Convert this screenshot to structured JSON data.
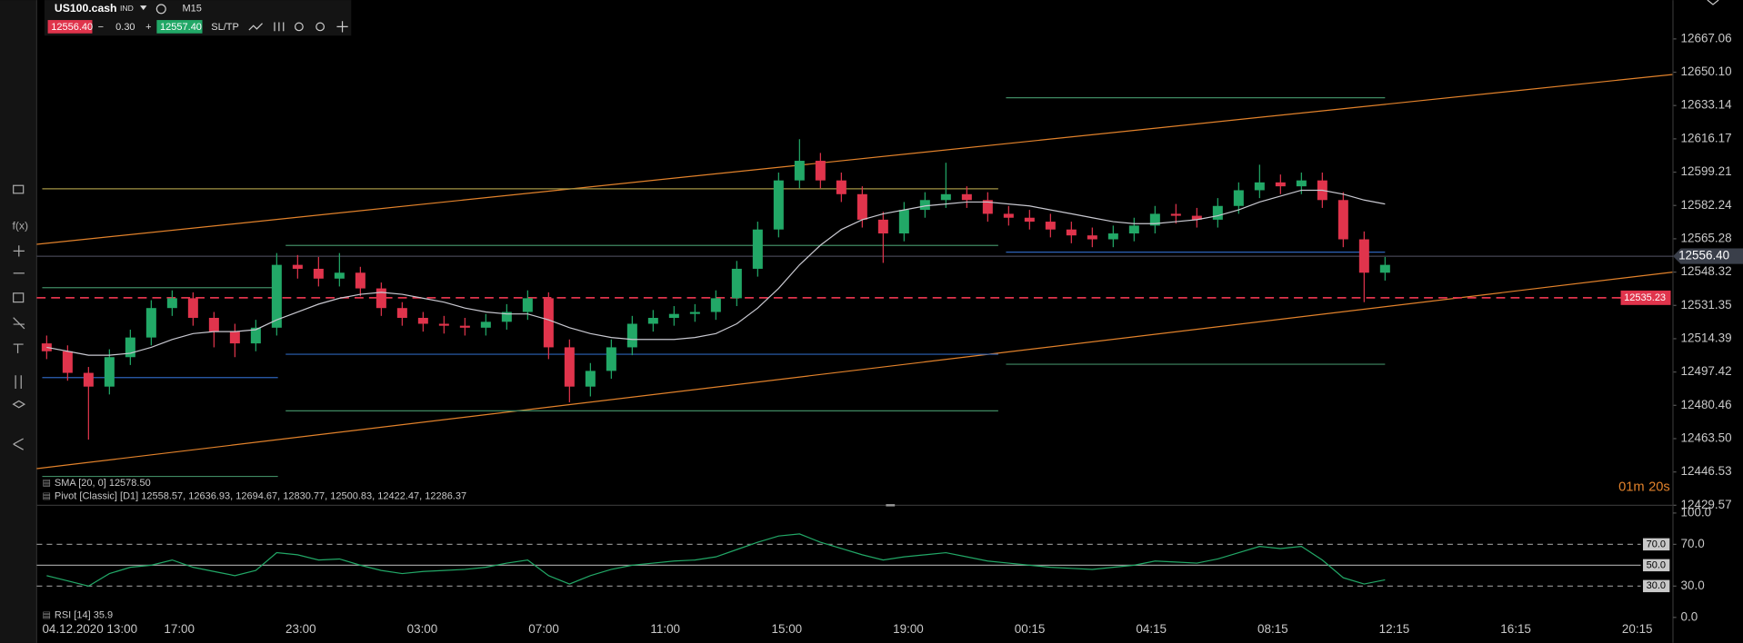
{
  "toolbar": {
    "symbol": "US100.cash",
    "class": "IND",
    "timeframe": "M15",
    "bid": "12556.40",
    "spread": "0.30",
    "ask": "12557.40",
    "sltp": "SL/TP"
  },
  "chart_data": {
    "type": "candlestick",
    "x_labels": [
      "04.12.2020 13:00",
      "17:00",
      "23:00",
      "03:00",
      "07:00",
      "11:00",
      "15:00",
      "19:00",
      "00:15",
      "04:15",
      "08:15",
      "12:15",
      "16:15",
      "20:15"
    ],
    "ohlc": [
      [
        12512,
        12516,
        12504,
        12508
      ],
      [
        12508,
        12511,
        12493,
        12497
      ],
      [
        12497,
        12500,
        12463,
        12490
      ],
      [
        12490,
        12509,
        12486,
        12505
      ],
      [
        12505,
        12519,
        12501,
        12515
      ],
      [
        12515,
        12534,
        12511,
        12530
      ],
      [
        12530,
        12539,
        12526,
        12535
      ],
      [
        12535,
        12538,
        12521,
        12525
      ],
      [
        12525,
        12528,
        12510,
        12518
      ],
      [
        12518,
        12522,
        12505,
        12512
      ],
      [
        12512,
        12524,
        12508,
        12520
      ],
      [
        12520,
        12558,
        12516,
        12552
      ],
      [
        12552,
        12557,
        12545,
        12550
      ],
      [
        12550,
        12556,
        12541,
        12545
      ],
      [
        12545,
        12558,
        12541,
        12548
      ],
      [
        12548,
        12551,
        12536,
        12540
      ],
      [
        12540,
        12543,
        12526,
        12530
      ],
      [
        12530,
        12533,
        12521,
        12525
      ],
      [
        12525,
        12528,
        12518,
        12522
      ],
      [
        12522,
        12526,
        12517,
        12521
      ],
      [
        12521,
        12525,
        12516,
        12520
      ],
      [
        12520,
        12527,
        12516,
        12523
      ],
      [
        12523,
        12532,
        12519,
        12528
      ],
      [
        12528,
        12539,
        12524,
        12535
      ],
      [
        12535,
        12538,
        12504,
        12510
      ],
      [
        12510,
        12514,
        12482,
        12490
      ],
      [
        12490,
        12502,
        12485,
        12498
      ],
      [
        12498,
        12514,
        12494,
        12510
      ],
      [
        12510,
        12526,
        12506,
        12522
      ],
      [
        12522,
        12529,
        12518,
        12525
      ],
      [
        12525,
        12531,
        12521,
        12527
      ],
      [
        12527,
        12532,
        12523,
        12528
      ],
      [
        12528,
        12539,
        12524,
        12535
      ],
      [
        12535,
        12554,
        12531,
        12550
      ],
      [
        12550,
        12574,
        12546,
        12570
      ],
      [
        12570,
        12599,
        12566,
        12595
      ],
      [
        12595,
        12616,
        12591,
        12605
      ],
      [
        12605,
        12609,
        12591,
        12595
      ],
      [
        12595,
        12599,
        12584,
        12588
      ],
      [
        12588,
        12592,
        12571,
        12575
      ],
      [
        12575,
        12579,
        12553,
        12568
      ],
      [
        12568,
        12584,
        12564,
        12580
      ],
      [
        12580,
        12589,
        12576,
        12585
      ],
      [
        12585,
        12604,
        12581,
        12588
      ],
      [
        12588,
        12592,
        12581,
        12585
      ],
      [
        12585,
        12589,
        12574,
        12578
      ],
      [
        12578,
        12582,
        12572,
        12576
      ],
      [
        12576,
        12580,
        12570,
        12574
      ],
      [
        12574,
        12578,
        12566,
        12570
      ],
      [
        12570,
        12574,
        12563,
        12567
      ],
      [
        12567,
        12571,
        12561,
        12565
      ],
      [
        12565,
        12572,
        12561,
        12568
      ],
      [
        12568,
        12576,
        12564,
        12572
      ],
      [
        12572,
        12582,
        12568,
        12578
      ],
      [
        12578,
        12583,
        12573,
        12577
      ],
      [
        12577,
        12581,
        12571,
        12575
      ],
      [
        12575,
        12586,
        12571,
        12582
      ],
      [
        12582,
        12594,
        12578,
        12590
      ],
      [
        12590,
        12603,
        12586,
        12594
      ],
      [
        12594,
        12598,
        12588,
        12592
      ],
      [
        12592,
        12599,
        12588,
        12595
      ],
      [
        12595,
        12599,
        12581,
        12585
      ],
      [
        12585,
        12589,
        12561,
        12565
      ],
      [
        12565,
        12569,
        12533,
        12548
      ],
      [
        12548,
        12556,
        12544,
        12552
      ]
    ],
    "sma": [
      12510,
      12508,
      12506,
      12506,
      12507,
      12510,
      12514,
      12517,
      12518,
      12518,
      12519,
      12524,
      12528,
      12532,
      12535,
      12537,
      12538,
      12537,
      12535,
      12533,
      12530,
      12528,
      12527,
      12527,
      12524,
      12520,
      12517,
      12515,
      12514,
      12514,
      12514,
      12515,
      12517,
      12522,
      12530,
      12540,
      12552,
      12562,
      12570,
      12575,
      12578,
      12580,
      12582,
      12583,
      12584,
      12584,
      12583,
      12582,
      12580,
      12578,
      12576,
      12574,
      12573,
      12573,
      12574,
      12575,
      12577,
      12580,
      12584,
      12587,
      12590,
      12590,
      12588,
      12585,
      12583
    ],
    "up_color": "#22a867",
    "down_color": "#e0344c",
    "sma_color": "#c8c8d0",
    "ylim": [
      12429.57,
      12686.85
    ],
    "yticks": [
      12667.06,
      {
        "value": 12650.1,
        "label": "12650.10"
      },
      12633.14,
      12616.17,
      12599.21,
      12582.24,
      12565.28,
      12548.32,
      12531.35,
      12514.39,
      12497.42,
      12480.46,
      {
        "value": 12463.5,
        "label": "12463.50"
      },
      12446.53,
      12429.57
    ],
    "last_price": {
      "value": 12556.4,
      "label": "12556.40"
    },
    "alert_level": 12535.23,
    "indicators": [
      "SMA [20, 0] 12578.50",
      "Pivot [Classic] [D1] 12558.57, 12636.93, 12694.67, 12830.77, 12500.83, 12422.47, 12286.37"
    ],
    "timer": [
      "01m",
      "20s"
    ]
  },
  "rsi": {
    "type": "line",
    "label": "RSI [14] 35.9",
    "color": "#22a867",
    "values": [
      40,
      35,
      30,
      42,
      48,
      50,
      55,
      48,
      44,
      40,
      45,
      62,
      60,
      55,
      56,
      50,
      45,
      42,
      44,
      45,
      46,
      48,
      52,
      55,
      40,
      32,
      40,
      46,
      50,
      52,
      54,
      55,
      58,
      65,
      72,
      78,
      80,
      72,
      66,
      60,
      55,
      58,
      60,
      62,
      58,
      54,
      52,
      50,
      48,
      47,
      46,
      48,
      50,
      54,
      53,
      52,
      56,
      62,
      68,
      66,
      68,
      55,
      38,
      32,
      36
    ],
    "ylim": [
      0,
      100
    ],
    "yticks": [
      {
        "value": 100,
        "label": "100.0"
      },
      {
        "value": 70,
        "label": "70.0"
      },
      {
        "value": 30,
        "label": "30.0"
      },
      {
        "value": 0,
        "label": "0.0"
      }
    ],
    "levels": [
      {
        "value": 70,
        "label": "70.0"
      },
      {
        "value": 50,
        "label": "50.0"
      },
      {
        "value": 30,
        "label": "30.0"
      }
    ]
  }
}
